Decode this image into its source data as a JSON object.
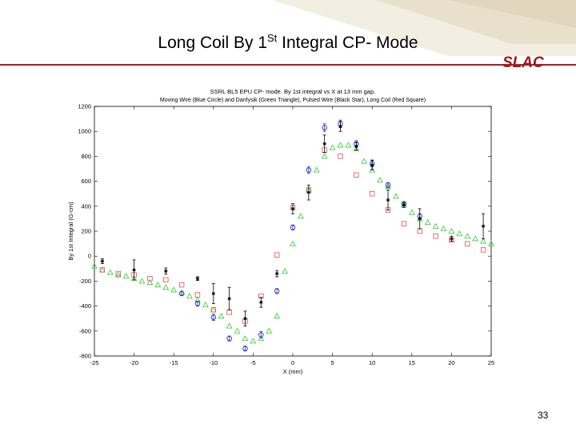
{
  "slide": {
    "title_pre": "Long Coil By 1",
    "title_sup": "St",
    "title_post": " Integral CP- Mode",
    "logo": "SLAC",
    "page_number": "33",
    "accent_color": "#b01f1f"
  },
  "chart_data": {
    "type": "scatter",
    "title": "SSRL BL5 EPU CP-  mode.  By 1st integral vs X at 13 mm gap.",
    "subtitle": "Moving Wire (Blue Circle) and Danfysik (Green Triangle), Pulsed Wire (Black Star), Long Coil (Red Square)",
    "xlabel": "X (mm)",
    "ylabel": "By 1st Integral (G-cm)",
    "xlim": [
      -25,
      25
    ],
    "ylim": [
      -800,
      1200
    ],
    "xticks": [
      "-25",
      "-20",
      "-15",
      "-10",
      "-5",
      "0",
      "5",
      "10",
      "15",
      "20",
      "25"
    ],
    "yticks": [
      "-800",
      "-600",
      "-400",
      "-200",
      "0",
      "200",
      "400",
      "600",
      "800",
      "1000",
      "1200"
    ],
    "grid": false,
    "series": [
      {
        "name": "Danfysik (Green Triangle)",
        "marker": "triangle",
        "color": "#33cc33",
        "x": [
          -25,
          -24,
          -23,
          -22,
          -21,
          -20,
          -19,
          -18,
          -17,
          -16,
          -15,
          -14,
          -13,
          -12,
          -11,
          -10,
          -9,
          -8,
          -7,
          -6,
          -5,
          -4,
          -3,
          -2,
          -1,
          0,
          1,
          2,
          3,
          4,
          5,
          6,
          7,
          8,
          9,
          10,
          11,
          12,
          13,
          14,
          15,
          16,
          17,
          18,
          19,
          20,
          21,
          22,
          23,
          24,
          25
        ],
        "y": [
          -80,
          -110,
          -130,
          -150,
          -160,
          -180,
          -200,
          -210,
          -230,
          -250,
          -270,
          -290,
          -320,
          -350,
          -390,
          -430,
          -480,
          -560,
          -600,
          -660,
          -680,
          -660,
          -600,
          -480,
          -120,
          100,
          320,
          530,
          690,
          800,
          870,
          890,
          890,
          860,
          760,
          690,
          610,
          560,
          480,
          410,
          350,
          300,
          270,
          240,
          220,
          200,
          180,
          160,
          140,
          120,
          100
        ]
      },
      {
        "name": "Long Coil (Red Square)",
        "marker": "square",
        "color": "#e05050",
        "x": [
          -24,
          -22,
          -20,
          -18,
          -16,
          -14,
          -12,
          -10,
          -8,
          -6,
          -4,
          -2,
          0,
          2,
          4,
          6,
          8,
          10,
          12,
          14,
          16,
          18,
          20,
          22,
          24
        ],
        "y": [
          -110,
          -140,
          -150,
          -180,
          -190,
          -230,
          -310,
          -430,
          -450,
          -520,
          -320,
          10,
          390,
          530,
          850,
          800,
          650,
          500,
          370,
          260,
          200,
          160,
          130,
          100,
          50
        ]
      },
      {
        "name": "Moving Wire (Blue Circle)",
        "marker": "circle",
        "color": "#2233cc",
        "x": [
          -14,
          -12,
          -10,
          -8,
          -6,
          -4,
          -2,
          0,
          2,
          4,
          6,
          8,
          10,
          12,
          14,
          16
        ],
        "y": [
          -300,
          -380,
          -490,
          -660,
          -740,
          -630,
          -280,
          230,
          690,
          1030,
          1060,
          900,
          740,
          570,
          420,
          320
        ],
        "err": [
          15,
          20,
          25,
          20,
          20,
          25,
          20,
          20,
          25,
          30,
          30,
          25,
          25,
          20,
          15,
          20
        ]
      },
      {
        "name": "Pulsed Wire (Black Star)",
        "marker": "star",
        "color": "#000000",
        "x": [
          -24,
          -20,
          -16,
          -12,
          -10,
          -8,
          -6,
          -4,
          -2,
          0,
          2,
          4,
          6,
          8,
          10,
          12,
          14,
          16,
          20,
          24
        ],
        "y": [
          -40,
          -110,
          -120,
          -180,
          -300,
          -340,
          -500,
          -370,
          -140,
          380,
          510,
          900,
          1040,
          880,
          730,
          450,
          410,
          300,
          140,
          240
        ],
        "err": [
          20,
          80,
          25,
          15,
          80,
          90,
          60,
          40,
          25,
          40,
          60,
          70,
          40,
          30,
          40,
          80,
          20,
          80,
          20,
          100
        ]
      }
    ]
  }
}
